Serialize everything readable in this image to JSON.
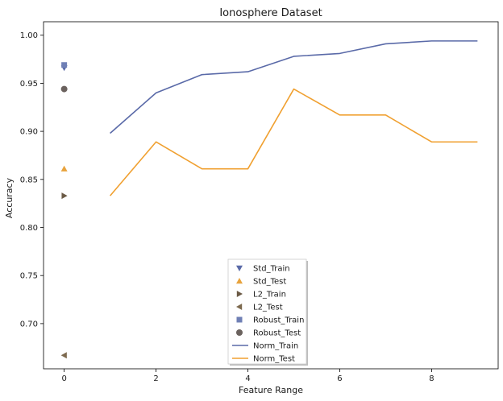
{
  "chart_data": {
    "type": "line",
    "title": "Ionosphere Dataset",
    "xlabel": "Feature Range",
    "ylabel": "Accuracy",
    "xlim": [
      -0.45,
      9.45
    ],
    "ylim": [
      0.653,
      1.014
    ],
    "xticks": [
      0,
      2,
      4,
      6,
      8
    ],
    "yticks": [
      0.7,
      0.75,
      0.8,
      0.85,
      0.9,
      0.95,
      1.0
    ],
    "xtick_labels": [
      "0",
      "2",
      "4",
      "6",
      "8"
    ],
    "ytick_labels": [
      "0.70",
      "0.75",
      "0.80",
      "0.85",
      "0.90",
      "0.95",
      "1.00"
    ],
    "grid": false,
    "legend_position": "lower-center",
    "markers": [
      {
        "name": "Std_Train",
        "x": 0,
        "y": 0.966,
        "marker": "triangle-down",
        "color": "#5a6aa8"
      },
      {
        "name": "Std_Test",
        "x": 0,
        "y": 0.861,
        "marker": "triangle-up",
        "color": "#e8a33d"
      },
      {
        "name": "L2_Train",
        "x": 0,
        "y": 0.833,
        "marker": "triangle-right",
        "color": "#6b5a45"
      },
      {
        "name": "L2_Test",
        "x": 0,
        "y": 0.667,
        "marker": "triangle-left",
        "color": "#7d6a4f"
      },
      {
        "name": "Robust_Train",
        "x": 0,
        "y": 0.969,
        "marker": "square",
        "color": "#6f7fb5"
      },
      {
        "name": "Robust_Test",
        "x": 0,
        "y": 0.944,
        "marker": "circle",
        "color": "#6b625e"
      }
    ],
    "series": [
      {
        "name": "Norm_Train",
        "color": "#5a6aa8",
        "x": [
          1,
          2,
          3,
          4,
          5,
          6,
          7,
          8,
          9
        ],
        "values": [
          0.898,
          0.94,
          0.959,
          0.962,
          0.978,
          0.981,
          0.991,
          0.994,
          0.994
        ]
      },
      {
        "name": "Norm_Test",
        "color": "#f0a030",
        "x": [
          1,
          2,
          3,
          4,
          5,
          6,
          7,
          8,
          9
        ],
        "values": [
          0.833,
          0.889,
          0.861,
          0.861,
          0.944,
          0.917,
          0.917,
          0.889,
          0.889
        ]
      }
    ]
  }
}
